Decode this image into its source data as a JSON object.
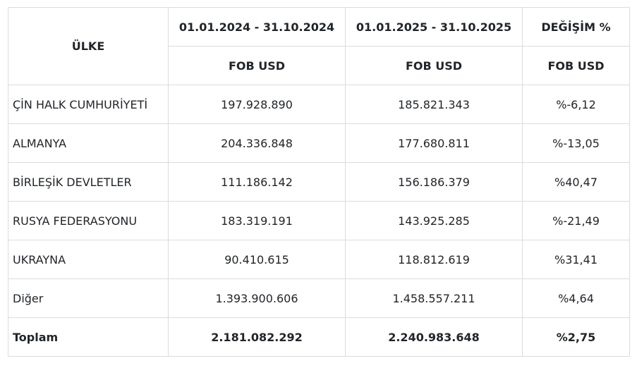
{
  "table": {
    "header": {
      "country_label": "ÜLKE",
      "period_2024": "01.01.2024 - 31.10.2024",
      "period_2025": "01.01.2025 - 31.10.2025",
      "change_label": "DEĞİŞİM %",
      "unit_2024": "FOB USD",
      "unit_2025": "FOB USD",
      "unit_change": "FOB USD"
    },
    "rows": [
      {
        "country": "ÇİN HALK CUMHURİYETİ",
        "v2024": "197.928.890",
        "v2025": "185.821.343",
        "change": "%-6,12"
      },
      {
        "country": "ALMANYA",
        "v2024": "204.336.848",
        "v2025": "177.680.811",
        "change": "%-13,05"
      },
      {
        "country": "BİRLEŞİK DEVLETLER",
        "v2024": "111.186.142",
        "v2025": "156.186.379",
        "change": "%40,47"
      },
      {
        "country": "RUSYA FEDERASYONU",
        "v2024": "183.319.191",
        "v2025": "143.925.285",
        "change": "%-21,49"
      },
      {
        "country": "UKRAYNA",
        "v2024": "90.410.615",
        "v2025": "118.812.619",
        "change": "%31,41"
      },
      {
        "country": "Diğer",
        "v2024": "1.393.900.606",
        "v2025": "1.458.557.211",
        "change": "%4,64"
      }
    ],
    "total": {
      "country": "Toplam",
      "v2024": "2.181.082.292",
      "v2025": "2.240.983.648",
      "change": "%2,75"
    }
  }
}
